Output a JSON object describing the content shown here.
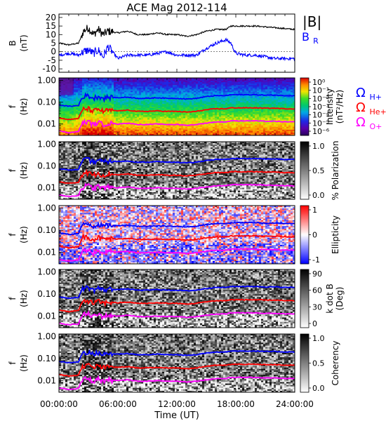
{
  "title": "ACE Mag 2012-114",
  "time_axis": {
    "label": "Time (UT)",
    "ticks": [
      "00:00:00",
      "06:00:00",
      "12:00:00",
      "18:00:00",
      "24:00:00"
    ],
    "range_hours": [
      0,
      24
    ]
  },
  "legend": {
    "bmag": "|B|",
    "br_base": "B",
    "br_sub": "R",
    "gyro_symbol": "Ω",
    "gyro_h": "H+",
    "gyro_he": "He+",
    "gyro_o": "O+"
  },
  "colors": {
    "bmag": "#000000",
    "br": "#0000ff",
    "h_gyro": "#0000ff",
    "he_gyro": "#ff0000",
    "o_gyro": "#ff00ff"
  },
  "panels": [
    {
      "id": "b",
      "ylabel1": "B",
      "ylabel2": "(nT)",
      "yticks": [
        "20",
        "15",
        "10",
        "5",
        "0",
        "-5",
        "-10"
      ],
      "ylim": [
        -12,
        22
      ]
    },
    {
      "id": "intensity",
      "ylabel1": "f",
      "ylabel2": "(Hz)",
      "yticks": [
        "1.00",
        "0.10",
        "0.01"
      ],
      "colorbar_label1": "Intensity",
      "colorbar_label2": "(nT²/Hz)",
      "colorbar_ticks": [
        "10⁰",
        "10⁻¹",
        "10⁻²",
        "10⁻³",
        "10⁻⁴",
        "10⁻⁵",
        "10⁻⁶"
      ],
      "colormap": "rainbow"
    },
    {
      "id": "polarization",
      "ylabel1": "f",
      "ylabel2": "(Hz)",
      "yticks": [
        "1.00",
        "0.10",
        "0.01"
      ],
      "colorbar_label1": "% Polarization",
      "colorbar_label2": "",
      "colorbar_ticks": [
        "1.0",
        "0.5",
        "0.0"
      ],
      "colormap": "grayscale"
    },
    {
      "id": "ellipticity",
      "ylabel1": "f",
      "ylabel2": "(Hz)",
      "yticks": [
        "1.00",
        "0.10",
        "0.01"
      ],
      "colorbar_label1": "Ellipticity",
      "colorbar_label2": "",
      "colorbar_ticks": [
        "1",
        "0",
        "-1"
      ],
      "colormap": "red-white-blue"
    },
    {
      "id": "kdotb",
      "ylabel1": "f",
      "ylabel2": "(Hz)",
      "yticks": [
        "1.00",
        "0.10",
        "0.01"
      ],
      "colorbar_label1": "k dot B",
      "colorbar_label2": "(Deg)",
      "colorbar_ticks": [
        "90",
        "60",
        "30",
        "0"
      ],
      "colormap": "grayscale"
    },
    {
      "id": "coherency",
      "ylabel1": "f",
      "ylabel2": "(Hz)",
      "yticks": [
        "1.00",
        "0.10",
        "0.01"
      ],
      "colorbar_label1": "Coherency",
      "colorbar_label2": "",
      "colorbar_ticks": [
        "1.0",
        "0.5",
        "0.0"
      ],
      "colormap": "grayscale"
    }
  ],
  "chart_data": {
    "type": "line",
    "title": "ACE Mag 2012-114",
    "xlabel": "Time (UT)",
    "x_hours": [
      0,
      1,
      2,
      2.5,
      3,
      3.5,
      4,
      4.5,
      5,
      6,
      7,
      8,
      9,
      10,
      11,
      12,
      13,
      14,
      15,
      16,
      16.5,
      17,
      17.5,
      18,
      19,
      20,
      21,
      22,
      23,
      24
    ],
    "series": [
      {
        "name": "|B|",
        "units": "nT",
        "values": [
          5,
          4,
          5,
          12,
          14,
          10,
          13,
          10,
          12,
          11,
          12,
          10,
          10,
          11,
          10,
          10,
          9,
          10,
          12,
          13,
          13,
          13,
          15,
          15,
          15,
          15,
          14.5,
          14,
          13.5,
          13
        ]
      },
      {
        "name": "B_R",
        "units": "nT",
        "values": [
          -2,
          -1,
          -2,
          0,
          1,
          -1,
          1,
          -3,
          3,
          -4,
          -2,
          -2,
          -2,
          -1,
          0,
          -2,
          -2,
          -2,
          2,
          5,
          6,
          7,
          5,
          -1,
          -2,
          -2,
          -3,
          -4,
          -4,
          -4
        ]
      },
      {
        "name": "Ω H+",
        "units": "Hz",
        "values": [
          0.075,
          0.065,
          0.07,
          0.19,
          0.2,
          0.15,
          0.19,
          0.15,
          0.17,
          0.16,
          0.17,
          0.15,
          0.15,
          0.16,
          0.15,
          0.15,
          0.14,
          0.15,
          0.18,
          0.2,
          0.2,
          0.2,
          0.22,
          0.22,
          0.22,
          0.22,
          0.21,
          0.21,
          0.2,
          0.2
        ]
      },
      {
        "name": "Ω He+",
        "units": "Hz",
        "values": [
          0.019,
          0.016,
          0.018,
          0.048,
          0.05,
          0.038,
          0.048,
          0.038,
          0.043,
          0.04,
          0.043,
          0.038,
          0.038,
          0.04,
          0.038,
          0.038,
          0.035,
          0.038,
          0.045,
          0.05,
          0.05,
          0.05,
          0.055,
          0.055,
          0.055,
          0.055,
          0.053,
          0.053,
          0.05,
          0.05
        ]
      },
      {
        "name": "Ω O+",
        "units": "Hz",
        "values": [
          0.0048,
          0.004,
          0.0045,
          0.012,
          0.0125,
          0.0095,
          0.012,
          0.0095,
          0.011,
          0.01,
          0.011,
          0.0095,
          0.0095,
          0.01,
          0.0095,
          0.0095,
          0.0088,
          0.0095,
          0.011,
          0.0125,
          0.0125,
          0.0125,
          0.014,
          0.014,
          0.014,
          0.014,
          0.0133,
          0.0133,
          0.0125,
          0.0125
        ]
      }
    ],
    "f_range_hz": [
      0.003,
      1.3
    ],
    "yscale": "log"
  }
}
